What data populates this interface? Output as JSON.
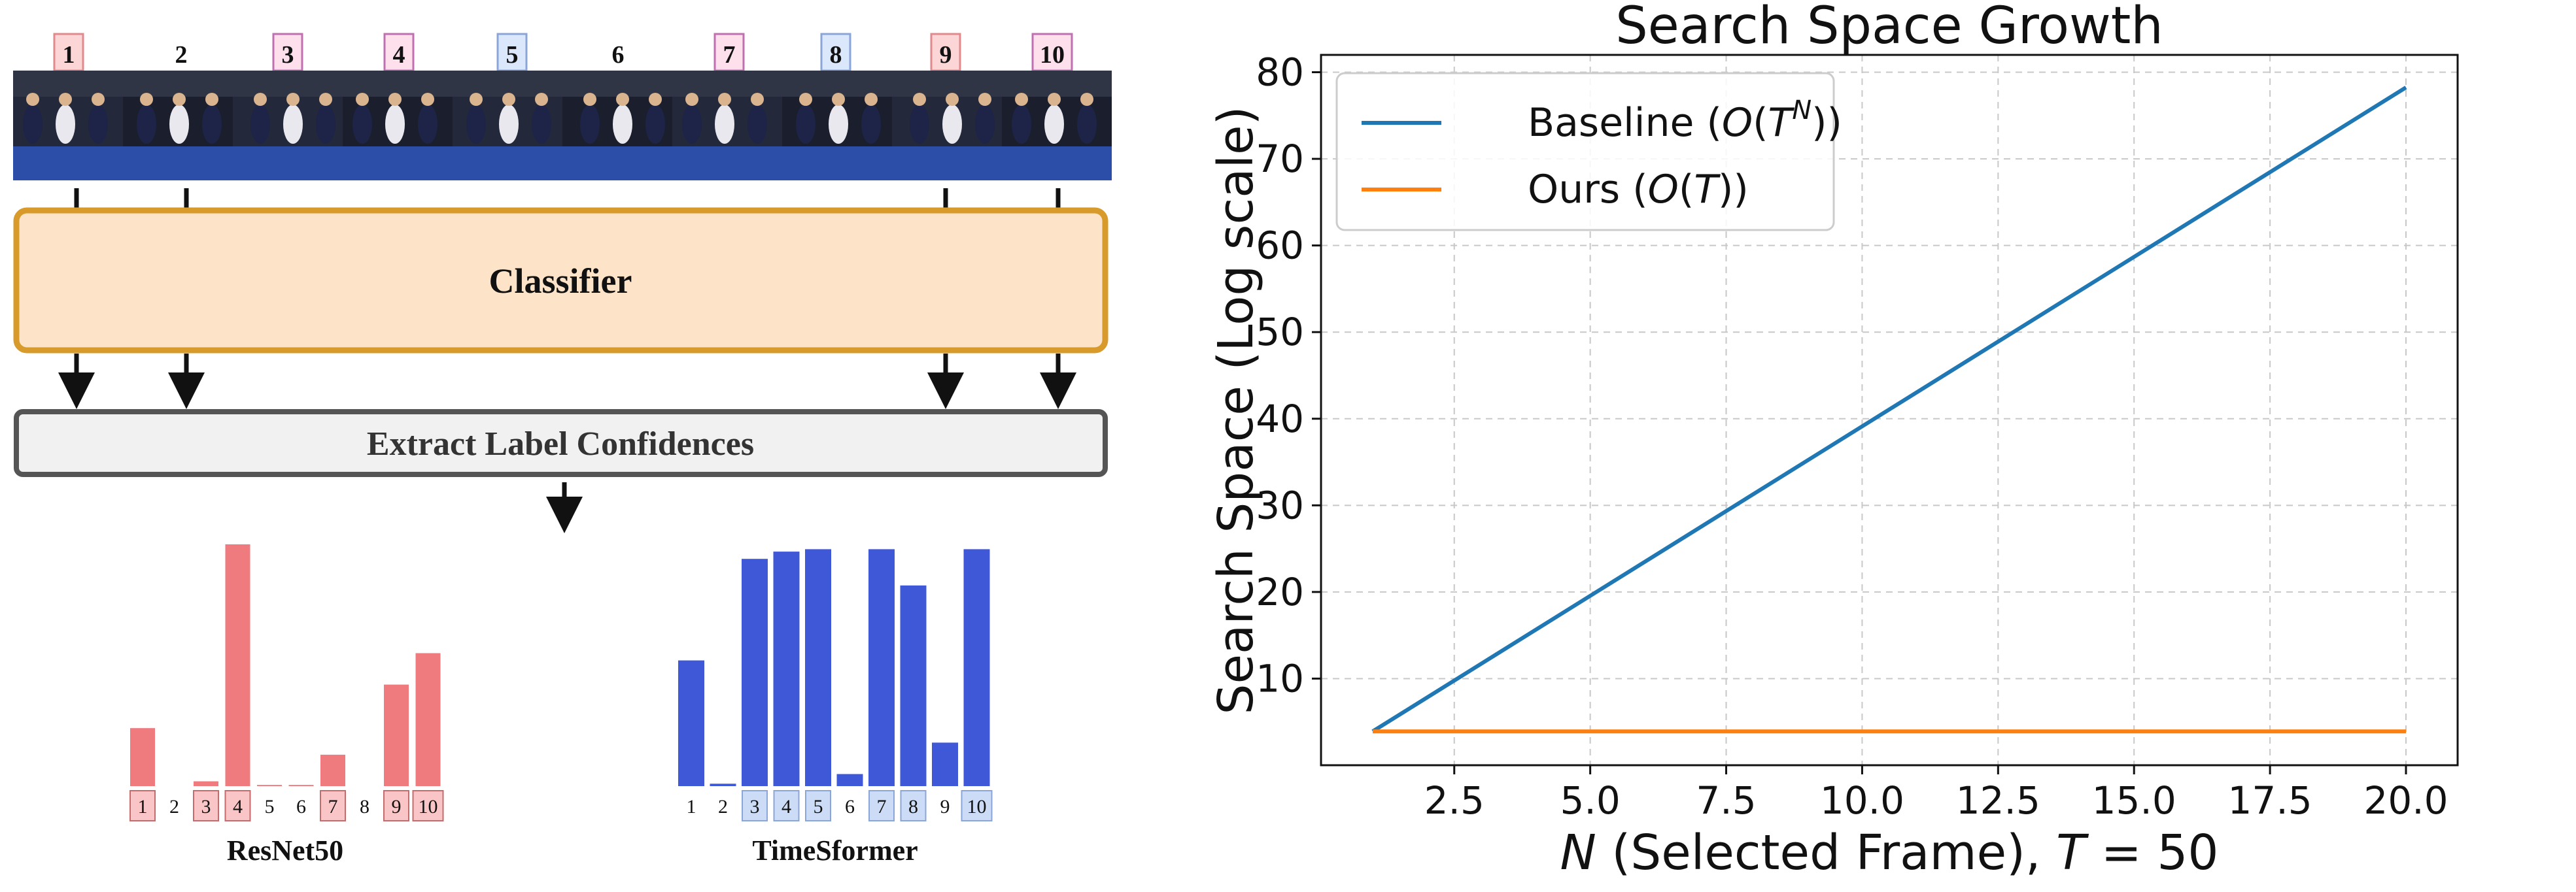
{
  "pipeline": {
    "frame_labels": [
      "1",
      "2",
      "3",
      "4",
      "5",
      "6",
      "7",
      "8",
      "9",
      "10"
    ],
    "classifier_label": "Classifier",
    "extract_label": "Extract Label Confidences"
  },
  "colors": {
    "resnet": "#ef7b7e",
    "timesformer": "#3f58d8",
    "classifier_fill": "#fde4c8",
    "classifier_border": "#d89a2a",
    "extract_fill": "#f1f1f1",
    "extract_border": "#555555",
    "baseline": "#1f77b4",
    "ours": "#ff7f0e"
  },
  "chart_data": [
    {
      "type": "bar",
      "title": "ResNet50",
      "categories": [
        "1",
        "2",
        "3",
        "4",
        "5",
        "6",
        "7",
        "8",
        "9",
        "10"
      ],
      "values": [
        0.24,
        0.0,
        0.02,
        1.0,
        0.005,
        0.005,
        0.13,
        0.0,
        0.42,
        0.55
      ],
      "highlighted": [
        "1",
        "3",
        "4",
        "7",
        "9",
        "10"
      ],
      "ylim": [
        0,
        1
      ],
      "color": "#ef7b7e"
    },
    {
      "type": "bar",
      "title": "TimeSformer",
      "categories": [
        "1",
        "2",
        "3",
        "4",
        "5",
        "6",
        "7",
        "8",
        "9",
        "10"
      ],
      "values": [
        0.52,
        0.01,
        0.94,
        0.97,
        0.98,
        0.05,
        0.98,
        0.83,
        0.18,
        0.98
      ],
      "highlighted": [
        "3",
        "4",
        "5",
        "7",
        "8",
        "10"
      ],
      "ylim": [
        0,
        1
      ],
      "color": "#3f58d8"
    },
    {
      "type": "line",
      "title": "Search Space Growth",
      "xlabel": "N (Selected Frame), T = 50",
      "ylabel": "Search Space (Log scale)",
      "xlim": [
        0.05,
        20.95
      ],
      "ylim": [
        0,
        82
      ],
      "xticks": [
        2.5,
        5.0,
        7.5,
        10.0,
        12.5,
        15.0,
        17.5,
        20.0
      ],
      "xtick_labels": [
        "2.5",
        "5.0",
        "7.5",
        "10.0",
        "12.5",
        "15.0",
        "17.5",
        "20.0"
      ],
      "yticks": [
        10,
        20,
        30,
        40,
        50,
        60,
        70,
        80
      ],
      "ytick_labels": [
        "10",
        "20",
        "30",
        "40",
        "50",
        "60",
        "70",
        "80"
      ],
      "grid": true,
      "legend_position": "top-left",
      "series": [
        {
          "name": "Baseline (O(T^N))",
          "x": [
            1,
            20
          ],
          "y": [
            3.91,
            78.24
          ],
          "color": "#1f77b4"
        },
        {
          "name": "Ours (O(T))",
          "x": [
            1,
            20
          ],
          "y": [
            3.91,
            3.91
          ],
          "color": "#ff7f0e"
        }
      ]
    }
  ]
}
